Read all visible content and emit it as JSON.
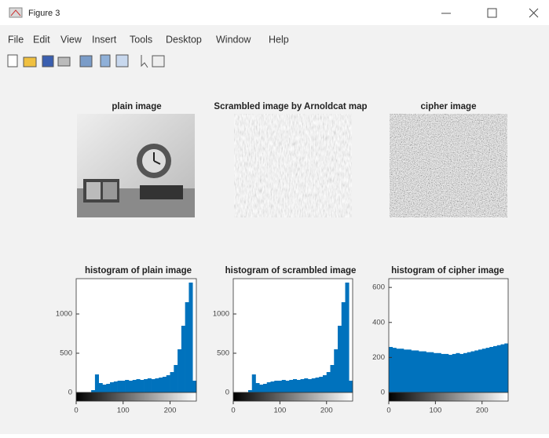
{
  "window": {
    "title": "Figure 3"
  },
  "menu": [
    "File",
    "Edit",
    "View",
    "Insert",
    "Tools",
    "Desktop",
    "Window",
    "Help"
  ],
  "images": [
    {
      "title": "plain image"
    },
    {
      "title": "Scrambled image by Arnoldcat map"
    },
    {
      "title": "cipher image"
    }
  ],
  "chart_data": [
    {
      "type": "histogram",
      "title": "histogram of plain image",
      "color": "#0072bd",
      "bins": [
        0,
        8,
        16,
        24,
        32,
        40,
        48,
        56,
        64,
        72,
        80,
        88,
        96,
        104,
        112,
        120,
        128,
        136,
        144,
        152,
        160,
        168,
        176,
        184,
        192,
        200,
        208,
        216,
        224,
        232,
        240,
        248,
        256
      ],
      "values": [
        0,
        0,
        0,
        0,
        30,
        230,
        120,
        100,
        110,
        130,
        140,
        150,
        150,
        160,
        150,
        160,
        170,
        160,
        170,
        180,
        170,
        180,
        190,
        200,
        220,
        260,
        350,
        550,
        850,
        1150,
        1400,
        150
      ],
      "xlim": [
        0,
        256
      ],
      "xticks": [
        0,
        100,
        200
      ],
      "ylim": [
        0,
        1450
      ],
      "yticks": [
        0,
        500,
        1000
      ]
    },
    {
      "type": "histogram",
      "title": "histogram of scrambled image",
      "color": "#0072bd",
      "bins": [
        0,
        8,
        16,
        24,
        32,
        40,
        48,
        56,
        64,
        72,
        80,
        88,
        96,
        104,
        112,
        120,
        128,
        136,
        144,
        152,
        160,
        168,
        176,
        184,
        192,
        200,
        208,
        216,
        224,
        232,
        240,
        248,
        256
      ],
      "values": [
        0,
        0,
        0,
        0,
        30,
        230,
        120,
        100,
        110,
        130,
        140,
        150,
        150,
        160,
        150,
        160,
        170,
        160,
        170,
        180,
        170,
        180,
        190,
        200,
        220,
        260,
        350,
        550,
        850,
        1150,
        1400,
        150
      ],
      "xlim": [
        0,
        256
      ],
      "xticks": [
        0,
        100,
        200
      ],
      "ylim": [
        0,
        1450
      ],
      "yticks": [
        0,
        500,
        1000
      ]
    },
    {
      "type": "histogram",
      "title": "histogram of cipher image",
      "color": "#0072bd",
      "bins": [
        0,
        8,
        16,
        24,
        32,
        40,
        48,
        56,
        64,
        72,
        80,
        88,
        96,
        104,
        112,
        120,
        128,
        136,
        144,
        152,
        160,
        168,
        176,
        184,
        192,
        200,
        208,
        216,
        224,
        232,
        240,
        248,
        256
      ],
      "values": [
        260,
        255,
        250,
        250,
        245,
        245,
        240,
        240,
        235,
        235,
        230,
        230,
        225,
        225,
        220,
        220,
        215,
        220,
        225,
        220,
        225,
        230,
        235,
        240,
        245,
        250,
        255,
        260,
        265,
        270,
        275,
        280
      ],
      "xlim": [
        0,
        256
      ],
      "xticks": [
        0,
        100,
        200
      ],
      "ylim": [
        0,
        650
      ],
      "yticks": [
        0,
        200,
        400,
        600
      ]
    }
  ]
}
